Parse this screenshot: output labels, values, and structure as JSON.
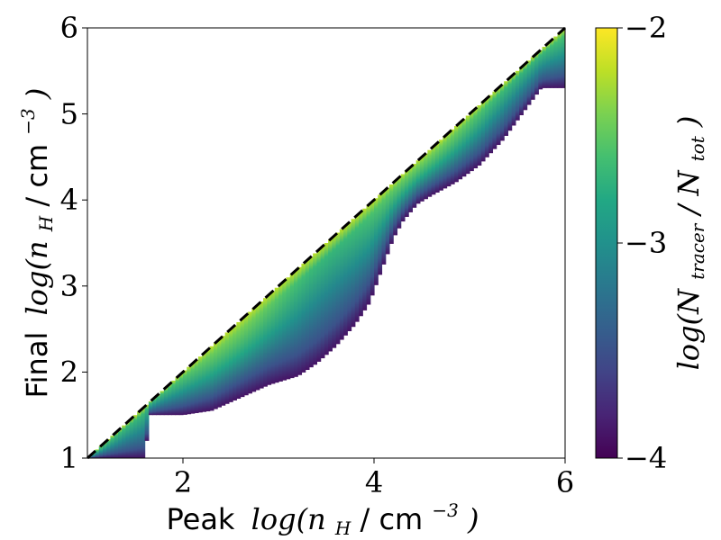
{
  "chart_data": {
    "type": "heatmap",
    "title": "",
    "xlabel": {
      "prefix": "Peak",
      "math": "log(n",
      "sub": "H",
      "unit": " / cm",
      "sup": "−3",
      "close": ")"
    },
    "ylabel": {
      "prefix": "Final",
      "math": "log(n",
      "sub": "H",
      "unit": " / cm",
      "sup": "−3",
      "close": ")"
    },
    "xlim": [
      1,
      6
    ],
    "ylim": [
      1,
      6
    ],
    "x_ticks": [
      2,
      4,
      6
    ],
    "y_ticks": [
      1,
      2,
      3,
      4,
      5,
      6
    ],
    "grid": false,
    "colormap": "viridis",
    "colorbar": {
      "label": {
        "math": "log(N",
        "sub1": "tracer",
        "mid": " / N",
        "sub2": "tot",
        "close": ")"
      },
      "range": [
        -4,
        -2
      ],
      "ticks": [
        -4,
        -3,
        -2
      ],
      "tick_labels": [
        "−4",
        "−3",
        "−2"
      ]
    },
    "reference_line": {
      "style": "dashed",
      "color": "#000000",
      "points": [
        [
          1,
          1
        ],
        [
          6,
          6
        ]
      ]
    },
    "density_region": {
      "upper_boundary": [
        [
          1.0,
          1.0
        ],
        [
          6.0,
          6.0
        ]
      ],
      "lower_boundary": [
        [
          1.0,
          1.0
        ],
        [
          1.3,
          1.0
        ],
        [
          1.6,
          1.0
        ],
        [
          1.65,
          1.5
        ],
        [
          2.0,
          1.5
        ],
        [
          2.3,
          1.55
        ],
        [
          2.6,
          1.7
        ],
        [
          2.9,
          1.85
        ],
        [
          3.2,
          1.95
        ],
        [
          3.4,
          2.1
        ],
        [
          3.6,
          2.3
        ],
        [
          3.8,
          2.55
        ],
        [
          3.95,
          2.8
        ],
        [
          4.1,
          3.25
        ],
        [
          4.2,
          3.55
        ],
        [
          4.3,
          3.75
        ],
        [
          4.45,
          3.95
        ],
        [
          4.6,
          4.05
        ],
        [
          4.85,
          4.2
        ],
        [
          5.1,
          4.4
        ],
        [
          5.35,
          4.7
        ],
        [
          5.55,
          5.0
        ],
        [
          5.75,
          5.3
        ],
        [
          6.0,
          5.3
        ]
      ],
      "ridge_log_value": -2.2,
      "edge_log_value": -3.9
    },
    "colors": {
      "viridis_low": "#440154",
      "viridis_mid": "#21918c",
      "viridis_high": "#fde725"
    }
  }
}
